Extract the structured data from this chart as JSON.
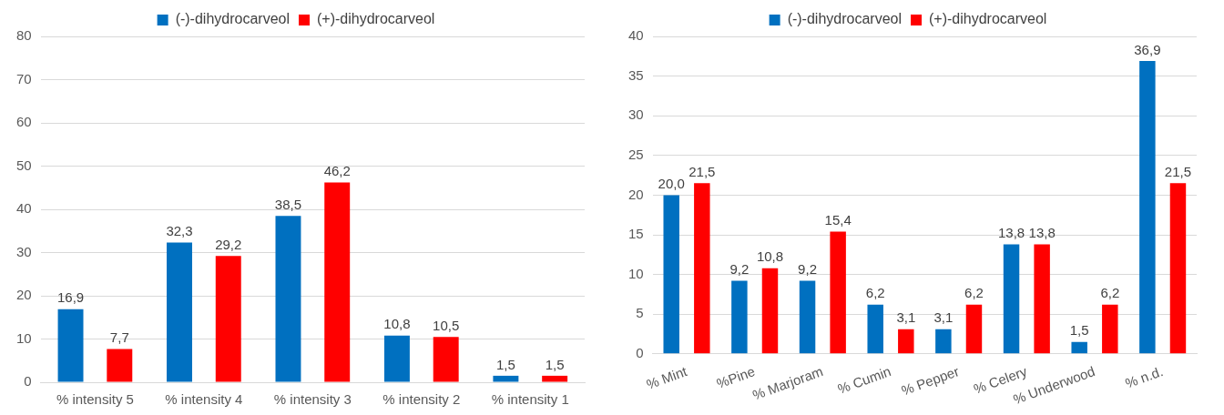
{
  "chart_data": [
    {
      "type": "bar",
      "categories": [
        "% intensity 5",
        "% intensity 4",
        "% intensity 3",
        "% intensity 2",
        "% intensity 1"
      ],
      "series": [
        {
          "name": "(-)-dihydrocarveol",
          "color": "#0070c0",
          "values": [
            16.9,
            32.3,
            38.5,
            10.8,
            1.5
          ],
          "value_labels": [
            "16,9",
            "32,3",
            "38,5",
            "10,8",
            "1,5"
          ]
        },
        {
          "name": "(+)-dihydrocarveol",
          "color": "#ff0000",
          "values": [
            7.7,
            29.2,
            46.2,
            10.5,
            1.5
          ],
          "value_labels": [
            "7,7",
            "29,2",
            "46,2",
            "10,5",
            "1,5"
          ]
        }
      ],
      "ylim": [
        0,
        80
      ],
      "yticks": [
        0,
        10,
        20,
        30,
        40,
        50,
        60,
        70,
        80
      ],
      "grid": "y",
      "legend": "top"
    },
    {
      "type": "bar",
      "categories": [
        "% Mint",
        "%Pine",
        "% Marjoram",
        "% Cumin",
        "% Pepper",
        "% Celery",
        "% Underwood",
        "% n.d."
      ],
      "series": [
        {
          "name": "(-)-dihydrocarveol",
          "color": "#0070c0",
          "values": [
            20.0,
            9.2,
            9.2,
            6.2,
            3.1,
            13.8,
            1.5,
            36.9
          ],
          "value_labels": [
            "20,0",
            "9,2",
            "9,2",
            "6,2",
            "3,1",
            "13,8",
            "1,5",
            "36,9"
          ]
        },
        {
          "name": "(+)-dihydrocarveol",
          "color": "#ff0000",
          "values": [
            21.5,
            10.8,
            15.4,
            3.1,
            6.2,
            13.8,
            6.2,
            21.5
          ],
          "value_labels": [
            "21,5",
            "10,8",
            "15,4",
            "3,1",
            "6,2",
            "13,8",
            "6,2",
            "21,5"
          ]
        }
      ],
      "ylim": [
        0,
        40
      ],
      "yticks": [
        0,
        5,
        10,
        15,
        20,
        25,
        30,
        35,
        40
      ],
      "grid": "y",
      "legend": "top"
    }
  ]
}
